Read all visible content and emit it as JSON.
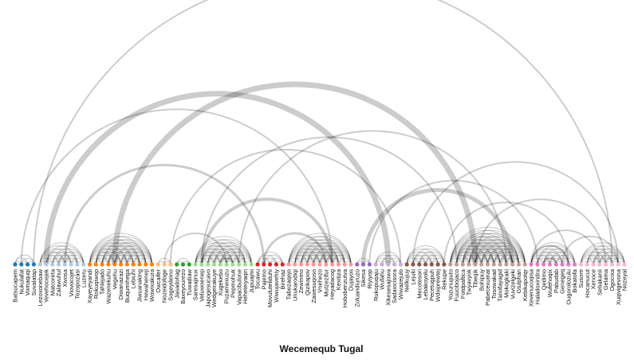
{
  "title": "Wecemequb Tugal",
  "groups": [
    {
      "color": "#1f77b4",
      "nodes": [
        "Batsucapem",
        "Nukulafat",
        "Vomaquqi",
        "Suvalatap"
      ]
    },
    {
      "color": "#aec7e8",
      "nodes": [
        "Lezoxonebaw",
        "Yevehocejek",
        "Matcoreta",
        "Zalawuhul",
        "Xivosa",
        "Viovocojet",
        "Tezopozasi",
        "Luzeru"
      ]
    },
    {
      "color": "#ff7f0e",
      "nodes": [
        "Xayeyeyandi",
        "Rokuqiwop",
        "Tahlejado",
        "Wazenekuhu",
        "Vegehu",
        "Diwanazazi",
        "Buqumihega",
        "Lebiuhi",
        "Jiwuanaking",
        "Hewaheneji",
        "Wowixakura"
      ]
    },
    {
      "color": "#ffbb78",
      "nodes": [
        "Owcaifer",
        "Nozeidofoge",
        "Sogeydeino"
      ]
    },
    {
      "color": "#2ca02c",
      "nodes": [
        "Jasadohag",
        "Baxeyourezo",
        "Tuwadiaw"
      ]
    },
    {
      "color": "#98df8a",
      "nodes": [
        "Saresajinux",
        "Veluwoenep",
        "Japogesucavo",
        "Wedgeirakuye",
        "Xugekebo",
        "Puzamexuzu",
        "Pepmohuk",
        "Vapacibulone",
        "Heheteiyaqin",
        "Jupuajmi"
      ]
    },
    {
      "color": "#d62728",
      "nodes": [
        "Tocawu",
        "Pajemo",
        "Movuluteliduhi",
        "Wiwujavehiy",
        "Birehaz"
      ]
    },
    {
      "color": "#ff9896",
      "nodes": [
        "Tabezaqejo",
        "Unukarodiqi",
        "Zewinmo",
        "Qizikapov",
        "Zawesuqoso",
        "Vnehezo",
        "Mutzezifur",
        "Heyadacog",
        "Kexitiza",
        "Hobobenzutva",
        "Dujayos"
      ]
    },
    {
      "color": "#9467bd",
      "nodes": [
        "Zoluandiuruzo",
        "Sikesa",
        "Riyiyop"
      ]
    },
    {
      "color": "#c5b0d5",
      "nodes": [
        "Rukopuqaju",
        "Wufahu",
        "Xikesesajowa",
        "Sadaxicisora",
        "Wiwazejulo"
      ]
    },
    {
      "color": "#8c564b",
      "nodes": [
        "Nelkujuy",
        "Lejuki",
        "Mecoteson",
        "Lebakoyolu",
        "Pecetugpuh",
        "Wdsiprewtej",
        "Rekupe"
      ]
    },
    {
      "color": "#c49c94",
      "nodes": [
        "Yozunuputo",
        "Fuucibojaco",
        "Fotdpaftica",
        "Twyavyok",
        "Tibeqik",
        "Bohipuy",
        "Pabecexumat",
        "Tosowakad",
        "Tanofayagid",
        "Mokogkaki",
        "Vuvizelgeki",
        "Gtulphan",
        "Kebikapotqr"
      ]
    },
    {
      "color": "#e377c2",
      "nodes": [
        "Xevenucoqisa",
        "Haladoxindra",
        "Qedimo",
        "Wufehoqix",
        "Pabudab",
        "Genegeq",
        "Ougorolozulu",
        "Bokatofa"
      ]
    },
    {
      "color": "#f7b6d2",
      "nodes": [
        "Susore",
        "Hocanucut",
        "Xenoce",
        "Sebakanii",
        "Gelama",
        "Ogocixa",
        "Xuqivigevona",
        "Nozeyal"
      ]
    }
  ],
  "links": [
    [
      0,
      142,
      13
    ],
    [
      2,
      152,
      3
    ],
    [
      1,
      51,
      2
    ],
    [
      3,
      96,
      2
    ],
    [
      5,
      60,
      7
    ],
    [
      8,
      40,
      3
    ],
    [
      14,
      138,
      2
    ],
    [
      17,
      137,
      2
    ],
    [
      20,
      104,
      8
    ],
    [
      18,
      142,
      2
    ],
    [
      23,
      114,
      2
    ],
    [
      25,
      62,
      2
    ],
    [
      16,
      74,
      7
    ],
    [
      38,
      117,
      2
    ],
    [
      38,
      128,
      2
    ],
    [
      30,
      71,
      2
    ],
    [
      36,
      79,
      2
    ],
    [
      57,
      84,
      2
    ],
    [
      19,
      120,
      8
    ],
    [
      40,
      50,
      3
    ],
    [
      43,
      124,
      2
    ],
    [
      56,
      80,
      5
    ],
    [
      57,
      115,
      8
    ],
    [
      49,
      152,
      2
    ],
    [
      88,
      124,
      2
    ],
    [
      59,
      119,
      2
    ],
    [
      64,
      97,
      2
    ],
    [
      81,
      112,
      2
    ],
    [
      98,
      148,
      2
    ],
    [
      83,
      94,
      2
    ],
    [
      30,
      51,
      4
    ],
    [
      77,
      107,
      2
    ],
    [
      24,
      34,
      2
    ],
    [
      33,
      35,
      2
    ],
    [
      69,
      89,
      2
    ],
    [
      83,
      89,
      2
    ],
    [
      88,
      97,
      2
    ],
    [
      95,
      103,
      2
    ],
    [
      84,
      109,
      2
    ],
    [
      85,
      87,
      2
    ],
    [
      100,
      105,
      2
    ],
    [
      106,
      111,
      2
    ],
    [
      116,
      127,
      2
    ],
    [
      107,
      113,
      2
    ],
    [
      115,
      121,
      2
    ],
    [
      114,
      127,
      2
    ],
    [
      128,
      131,
      2
    ],
    [
      119,
      128,
      2
    ],
    [
      126,
      136,
      2
    ],
    [
      137,
      140,
      2
    ],
    [
      142,
      146,
      2
    ],
    [
      138,
      146,
      2
    ],
    [
      121,
      141,
      2
    ],
    [
      129,
      143,
      2
    ],
    [
      101,
      137,
      2
    ],
    [
      90,
      122,
      2
    ],
    [
      74,
      95,
      2
    ],
    [
      73,
      99,
      2
    ]
  ]
}
